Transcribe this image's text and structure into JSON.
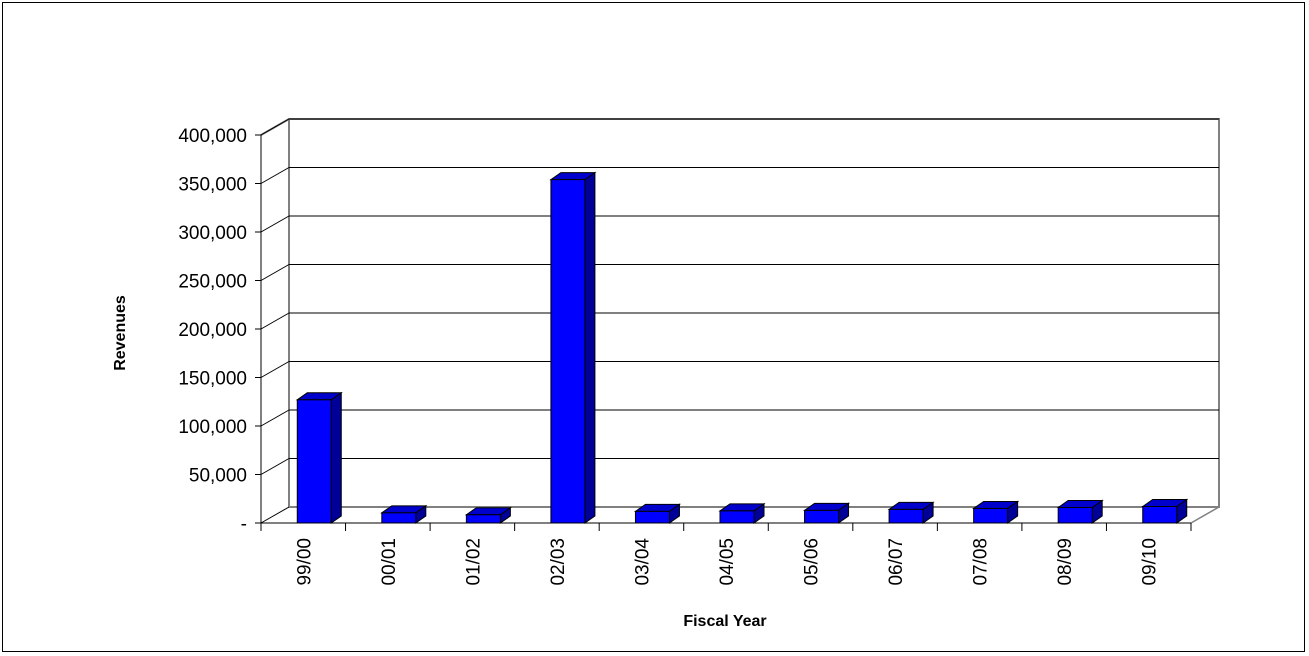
{
  "colors": {
    "bar_front": "#0000ff",
    "bar_side": "#000099",
    "bar_top": "#0000cc",
    "gridline": "#000000",
    "wall": "#808080",
    "background": "#ffffff"
  },
  "chart_data": {
    "type": "bar",
    "style": "3d-column",
    "title": "",
    "xlabel": "Fiscal Year",
    "ylabel": "Revenues",
    "categories": [
      "99/00",
      "00/01",
      "01/02",
      "02/03",
      "03/04",
      "04/05",
      "05/06",
      "06/07",
      "07/08",
      "08/09",
      "09/10"
    ],
    "values": [
      127000,
      10500,
      8500,
      354000,
      12000,
      12500,
      13000,
      14000,
      15000,
      16000,
      17000
    ],
    "ylim": [
      0,
      400000
    ],
    "yticks": [
      0,
      50000,
      100000,
      150000,
      200000,
      250000,
      300000,
      350000,
      400000
    ],
    "ytick_labels": [
      "-",
      "50,000",
      "100,000",
      "150,000",
      "200,000",
      "250,000",
      "300,000",
      "350,000",
      "400,000"
    ],
    "grid": true,
    "legend": "none"
  }
}
